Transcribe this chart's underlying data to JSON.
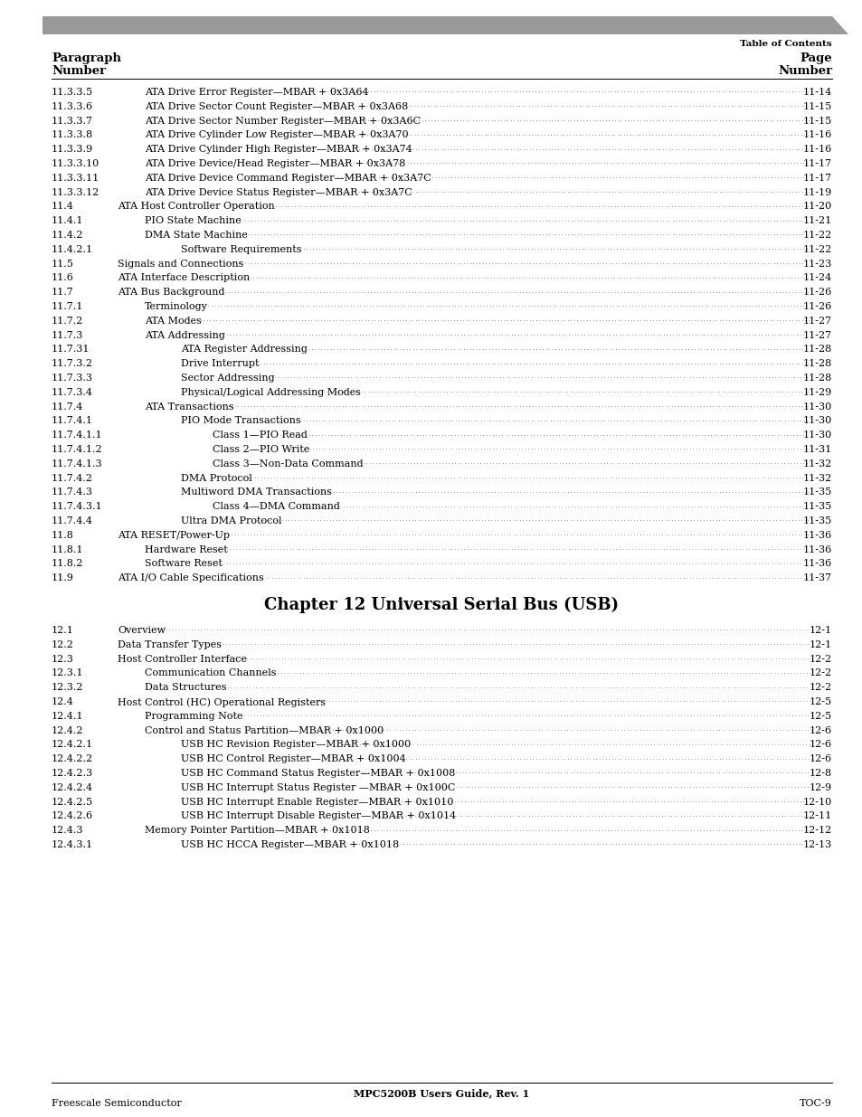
{
  "header_bar_color": "#9a9a9a",
  "background_color": "#ffffff",
  "header_right": "Table of Contents",
  "col_header_left1": "Paragraph",
  "col_header_left2": "Number",
  "col_header_right1": "Page",
  "col_header_right2": "Number",
  "footer_center": "MPC5200B Users Guide, Rev. 1",
  "footer_left": "Freescale Semiconductor",
  "footer_right": "TOC-9",
  "entries": [
    {
      "num": "11.3.3.5",
      "indent": 2,
      "text": "ATA Drive Error Register—MBAR + 0x3A64",
      "page": "11-14"
    },
    {
      "num": "11.3.3.6",
      "indent": 2,
      "text": "ATA Drive Sector Count Register—MBAR + 0x3A68",
      "page": "11-15"
    },
    {
      "num": "11.3.3.7",
      "indent": 2,
      "text": "ATA Drive Sector Number Register—MBAR + 0x3A6C",
      "page": "11-15"
    },
    {
      "num": "11.3.3.8",
      "indent": 2,
      "text": "ATA Drive Cylinder Low Register—MBAR + 0x3A70",
      "page": "11-16"
    },
    {
      "num": "11.3.3.9",
      "indent": 2,
      "text": "ATA Drive Cylinder High Register—MBAR + 0x3A74",
      "page": "11-16"
    },
    {
      "num": "11.3.3.10",
      "indent": 2,
      "text": "ATA Drive Device/Head Register—MBAR + 0x3A78",
      "page": "11-17"
    },
    {
      "num": "11.3.3.11",
      "indent": 2,
      "text": "ATA Drive Device Command Register—MBAR + 0x3A7C",
      "page": "11-17"
    },
    {
      "num": "11.3.3.12",
      "indent": 2,
      "text": "ATA Drive Device Status Register—MBAR + 0x3A7C",
      "page": "11-19"
    },
    {
      "num": "11.4",
      "indent": 1,
      "text": "ATA Host Controller Operation",
      "page": "11-20"
    },
    {
      "num": "11.4.1",
      "indent": 2,
      "text": "PIO State Machine",
      "page": "11-21"
    },
    {
      "num": "11.4.2",
      "indent": 2,
      "text": "DMA State Machine",
      "page": "11-22"
    },
    {
      "num": "11.4.2.1",
      "indent": 3,
      "text": "Software Requirements",
      "page": "11-22"
    },
    {
      "num": "11.5",
      "indent": 1,
      "text": "Signals and Connections",
      "page": "11-23"
    },
    {
      "num": "11.6",
      "indent": 1,
      "text": "ATA Interface Description",
      "page": "11-24"
    },
    {
      "num": "11.7",
      "indent": 1,
      "text": "ATA Bus Background",
      "page": "11-26"
    },
    {
      "num": "11.7.1",
      "indent": 2,
      "text": "Terminology",
      "page": "11-26"
    },
    {
      "num": "11.7.2",
      "indent": 2,
      "text": "ATA Modes",
      "page": "11-27"
    },
    {
      "num": "11.7.3",
      "indent": 2,
      "text": "ATA Addressing",
      "page": "11-27"
    },
    {
      "num": "11.7.31",
      "indent": 3,
      "text": "ATA Register Addressing",
      "page": "11-28"
    },
    {
      "num": "11.7.3.2",
      "indent": 3,
      "text": "Drive Interrupt",
      "page": "11-28"
    },
    {
      "num": "11.7.3.3",
      "indent": 3,
      "text": "Sector Addressing",
      "page": "11-28"
    },
    {
      "num": "11.7.3.4",
      "indent": 3,
      "text": "Physical/Logical Addressing Modes",
      "page": "11-29"
    },
    {
      "num": "11.7.4",
      "indent": 2,
      "text": "ATA Transactions",
      "page": "11-30"
    },
    {
      "num": "11.7.4.1",
      "indent": 3,
      "text": "PIO Mode Transactions",
      "page": "11-30"
    },
    {
      "num": "11.7.4.1.1",
      "indent": 4,
      "text": "Class 1—PIO Read",
      "page": "11-30"
    },
    {
      "num": "11.7.4.1.2",
      "indent": 4,
      "text": "Class 2—PIO Write",
      "page": "11-31"
    },
    {
      "num": "11.7.4.1.3",
      "indent": 4,
      "text": "Class 3—Non-Data Command",
      "page": "11-32"
    },
    {
      "num": "11.7.4.2",
      "indent": 3,
      "text": "DMA Protocol",
      "page": "11-32"
    },
    {
      "num": "11.7.4.3",
      "indent": 3,
      "text": "Multiword DMA Transactions",
      "page": "11-35"
    },
    {
      "num": "11.7.4.3.1",
      "indent": 4,
      "text": "Class 4—DMA Command",
      "page": "11-35"
    },
    {
      "num": "11.7.4.4",
      "indent": 3,
      "text": "Ultra DMA Protocol",
      "page": "11-35"
    },
    {
      "num": "11.8",
      "indent": 1,
      "text": "ATA RESET/Power-Up",
      "page": "11-36"
    },
    {
      "num": "11.8.1",
      "indent": 2,
      "text": "Hardware Reset",
      "page": "11-36"
    },
    {
      "num": "11.8.2",
      "indent": 2,
      "text": "Software Reset",
      "page": "11-36"
    },
    {
      "num": "11.9",
      "indent": 1,
      "text": "ATA I/O Cable Specifications",
      "page": "11-37"
    },
    {
      "num": "",
      "indent": 0,
      "text": "",
      "page": "",
      "is_chapter": true,
      "chapter_text": "Chapter 12 Universal Serial Bus (USB)"
    },
    {
      "num": "12.1",
      "indent": 1,
      "text": "Overview",
      "page": "12-1"
    },
    {
      "num": "12.2",
      "indent": 1,
      "text": "Data Transfer Types",
      "page": "12-1"
    },
    {
      "num": "12.3",
      "indent": 1,
      "text": "Host Controller Interface",
      "page": "12-2"
    },
    {
      "num": "12.3.1",
      "indent": 2,
      "text": "Communication Channels",
      "page": "12-2"
    },
    {
      "num": "12.3.2",
      "indent": 2,
      "text": "Data Structures",
      "page": "12-2"
    },
    {
      "num": "12.4",
      "indent": 1,
      "text": "Host Control (HC) Operational Registers",
      "page": "12-5"
    },
    {
      "num": "12.4.1",
      "indent": 2,
      "text": "Programming Note",
      "page": "12-5"
    },
    {
      "num": "12.4.2",
      "indent": 2,
      "text": "Control and Status Partition—MBAR + 0x1000",
      "page": "12-6"
    },
    {
      "num": "12.4.2.1",
      "indent": 3,
      "text": "USB HC Revision Register—MBAR + 0x1000",
      "page": "12-6"
    },
    {
      "num": "12.4.2.2",
      "indent": 3,
      "text": "USB HC Control Register—MBAR + 0x1004",
      "page": "12-6"
    },
    {
      "num": "12.4.2.3",
      "indent": 3,
      "text": "USB HC Command Status Register—MBAR + 0x1008",
      "page": "12-8"
    },
    {
      "num": "12.4.2.4",
      "indent": 3,
      "text": "USB HC Interrupt Status Register —MBAR + 0x100C",
      "page": "12-9"
    },
    {
      "num": "12.4.2.5",
      "indent": 3,
      "text": "USB HC Interrupt Enable Register—MBAR + 0x1010",
      "page": "12-10"
    },
    {
      "num": "12.4.2.6",
      "indent": 3,
      "text": "USB HC Interrupt Disable Register—MBAR + 0x1014",
      "page": "12-11"
    },
    {
      "num": "12.4.3",
      "indent": 2,
      "text": "Memory Pointer Partition—MBAR + 0x1018",
      "page": "12-12"
    },
    {
      "num": "12.4.3.1",
      "indent": 3,
      "text": "USB HC HCCA Register—MBAR + 0x1018",
      "page": "12-13"
    }
  ]
}
